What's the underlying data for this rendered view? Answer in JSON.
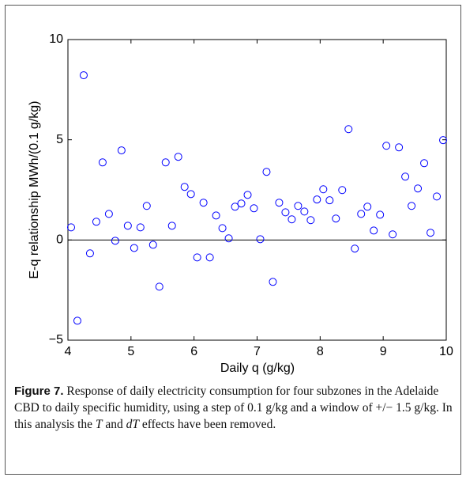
{
  "chart_data": {
    "type": "scatter",
    "xlabel": "Daily q (g/kg)",
    "ylabel": "E-q relationship MWh/(0.1 g/kg)",
    "x": [
      4.05,
      4.15,
      4.25,
      4.35,
      4.45,
      4.55,
      4.65,
      4.75,
      4.85,
      4.95,
      5.05,
      5.15,
      5.25,
      5.35,
      5.45,
      5.55,
      5.65,
      5.75,
      5.85,
      5.95,
      6.05,
      6.15,
      6.25,
      6.35,
      6.45,
      6.55,
      6.65,
      6.75,
      6.85,
      6.95,
      7.05,
      7.15,
      7.25,
      7.35,
      7.45,
      7.55,
      7.65,
      7.75,
      7.85,
      7.95,
      8.05,
      8.15,
      8.25,
      8.35,
      8.45,
      8.55,
      8.65,
      8.75,
      8.85,
      8.95,
      9.05,
      9.15,
      9.25,
      9.35,
      9.45,
      9.55,
      9.65,
      9.75,
      9.85,
      9.95
    ],
    "series": [
      {
        "color": "#0000ff",
        "values": [
          0.63,
          -4.03,
          8.22,
          -0.67,
          0.91,
          3.87,
          1.3,
          -0.04,
          4.47,
          0.71,
          -0.4,
          0.63,
          1.7,
          -0.24,
          -2.33,
          3.87,
          0.71,
          4.15,
          2.65,
          2.29,
          -0.87,
          1.86,
          -0.87,
          1.22,
          0.59,
          0.08,
          1.66,
          1.82,
          2.25,
          1.58,
          0.04,
          3.4,
          -2.09,
          1.86,
          1.38,
          1.03,
          1.7,
          1.42,
          0.99,
          2.02,
          2.53,
          1.98,
          1.07,
          2.49,
          5.53,
          -0.43,
          1.3,
          1.66,
          0.47,
          1.26,
          4.7,
          0.28,
          4.62,
          3.16,
          1.7,
          2.57,
          3.83,
          0.36,
          2.17,
          4.98
        ]
      }
    ],
    "xlim": [
      4,
      10
    ],
    "xticks": [
      4,
      5,
      6,
      7,
      8,
      9,
      10
    ],
    "ylim": [
      -5,
      10
    ],
    "yticks": [
      {
        "value": -5,
        "label": "−5"
      },
      0,
      5,
      10
    ],
    "hline": 0,
    "caption": {
      "label": "Figure 7.",
      "parts": [
        "Response of daily electricity consumption for four subzones in the Adelaide CBD to daily specific humidity, using a step of 0.1 g/kg and a window of +/− 1.5 g/kg. In this analysis the ",
        "T",
        " and ",
        "dT",
        " effects have been removed."
      ]
    }
  }
}
